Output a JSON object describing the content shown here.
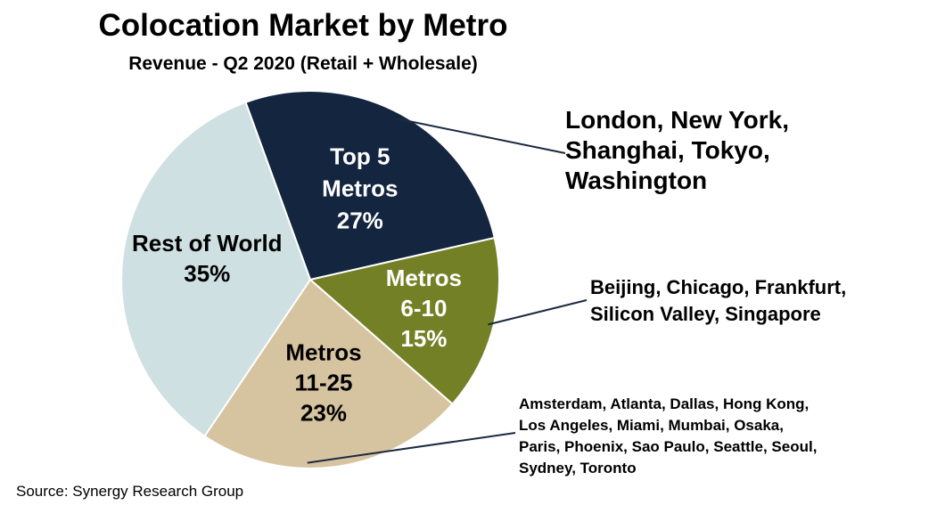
{
  "chart_data": {
    "type": "pie",
    "title": "Colocation Market by Metro",
    "subtitle": "Revenue - Q2 2020 (Retail + Wholesale)",
    "slices": [
      {
        "key": "top5",
        "name_lines": [
          "Top 5",
          "Metros"
        ],
        "value": 27,
        "value_label": "27%",
        "color": "#14253f",
        "text_color": "#ffffff",
        "callout_lines": [
          "London, New York,",
          "Shanghai, Tokyo,",
          "Washington"
        ]
      },
      {
        "key": "metros6to10",
        "name_lines": [
          "Metros",
          "6-10"
        ],
        "value": 15,
        "value_label": "15%",
        "color": "#748025",
        "text_color": "#ffffff",
        "callout_lines": [
          "Beijing, Chicago, Frankfurt,",
          "Silicon Valley, Singapore"
        ]
      },
      {
        "key": "metros11to25",
        "name_lines": [
          "Metros",
          "11-25"
        ],
        "value": 23,
        "value_label": "23%",
        "color": "#d6c3a0",
        "text_color": "#000000",
        "callout_lines": [
          "Amsterdam, Atlanta, Dallas, Hong Kong,",
          "Los Angeles, Miami, Mumbai, Osaka,",
          "Paris, Phoenix, Sao Paulo, Seattle, Seoul,",
          "Sydney, Toronto"
        ]
      },
      {
        "key": "rest",
        "name_lines": [
          "Rest of World"
        ],
        "value": 35,
        "value_label": "35%",
        "color": "#cfe0e2",
        "text_color": "#000000",
        "callout_lines": []
      }
    ],
    "source": "Source: Synergy Research Group"
  }
}
